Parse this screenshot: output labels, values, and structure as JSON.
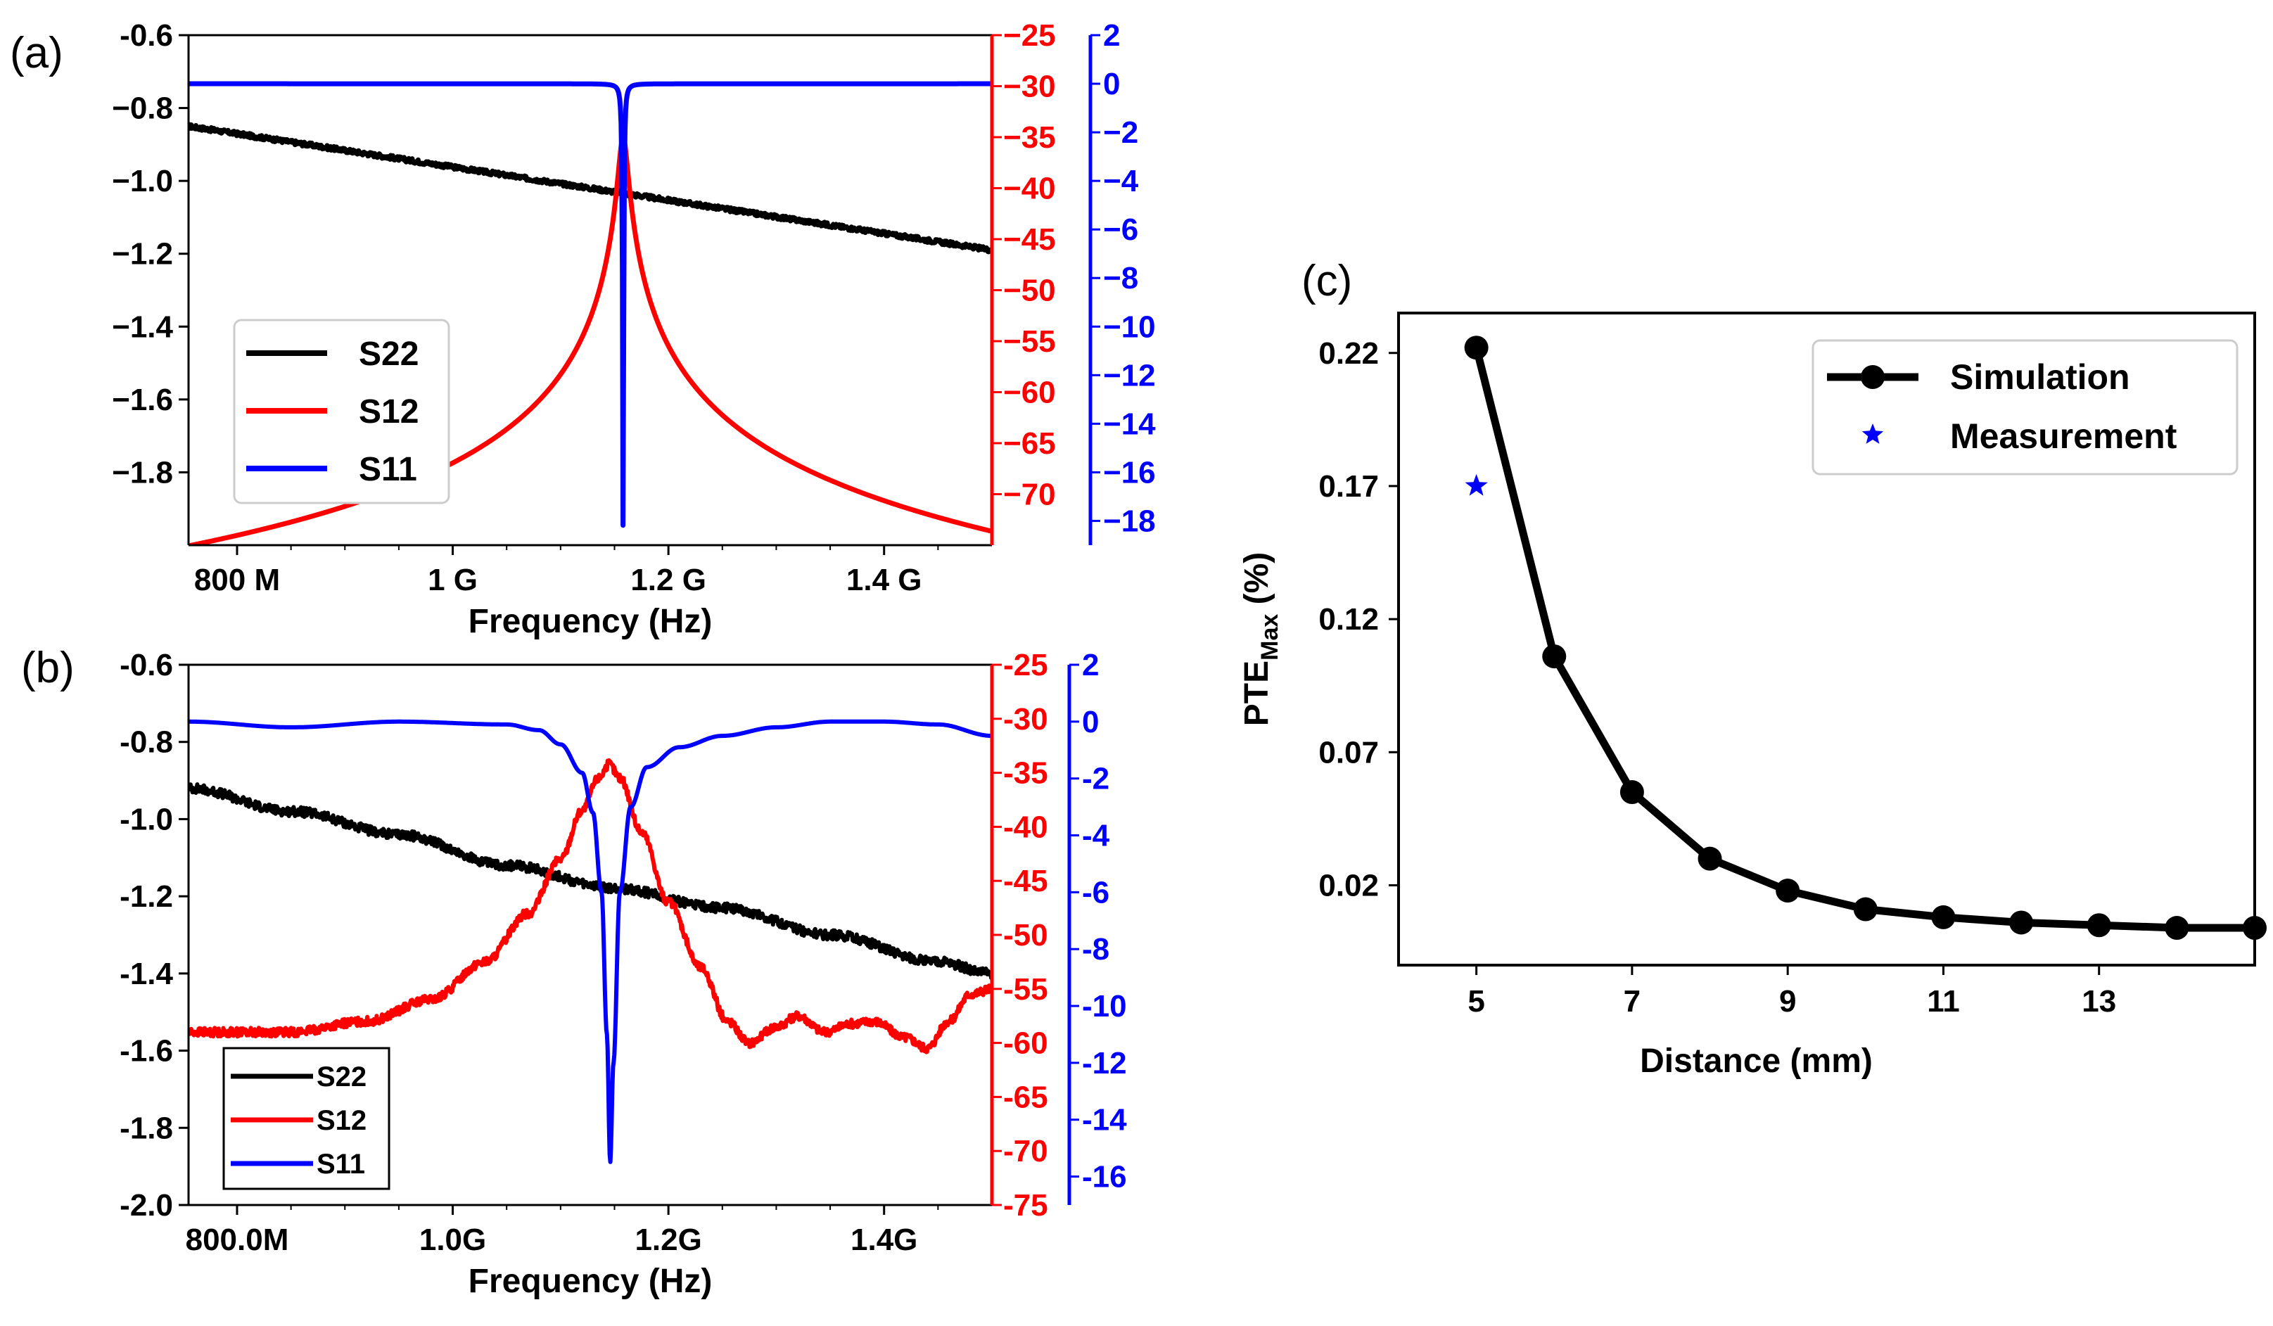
{
  "chart_data": [
    {
      "type": "line",
      "panel_label": "(a)",
      "xlabel": "Frequency (Hz)",
      "x_ticks": [
        {
          "value": 0.8,
          "label": "800 M"
        },
        {
          "value": 1.0,
          "label": "1 G"
        },
        {
          "value": 1.2,
          "label": "1.2 G"
        },
        {
          "value": 1.4,
          "label": "1.4 G"
        }
      ],
      "xlim": [
        0.755,
        1.5
      ],
      "y_left": {
        "ylim": [
          -2.0,
          -0.6
        ],
        "ticks": [
          {
            "value": -0.6,
            "label": "-0.6"
          },
          {
            "value": -0.8,
            "label": "−0.8"
          },
          {
            "value": -1.0,
            "label": "−1.0"
          },
          {
            "value": -1.2,
            "label": "−1.2"
          },
          {
            "value": -1.4,
            "label": "−1.4"
          },
          {
            "value": -1.6,
            "label": "−1.6"
          },
          {
            "value": -1.8,
            "label": "−1.8"
          }
        ]
      },
      "y_right1": {
        "color": "#ff0000",
        "ylim": [
          -75,
          -25
        ],
        "ticks": [
          {
            "value": -25,
            "label": "−25"
          },
          {
            "value": -30,
            "label": "−30"
          },
          {
            "value": -35,
            "label": "−35"
          },
          {
            "value": -40,
            "label": "−40"
          },
          {
            "value": -45,
            "label": "−45"
          },
          {
            "value": -50,
            "label": "−50"
          },
          {
            "value": -55,
            "label": "−55"
          },
          {
            "value": -60,
            "label": "−60"
          },
          {
            "value": -65,
            "label": "−65"
          },
          {
            "value": -70,
            "label": "−70"
          }
        ]
      },
      "y_right2": {
        "color": "#0000ff",
        "ylim": [
          -19,
          2
        ],
        "ticks": [
          {
            "value": 2,
            "label": "2"
          },
          {
            "value": 0,
            "label": "0"
          },
          {
            "value": -2,
            "label": "−2"
          },
          {
            "value": -4,
            "label": "−4"
          },
          {
            "value": -6,
            "label": "−6"
          },
          {
            "value": -8,
            "label": "−8"
          },
          {
            "value": -10,
            "label": "−10"
          },
          {
            "value": -12,
            "label": "−12"
          },
          {
            "value": -14,
            "label": "−14"
          },
          {
            "value": -16,
            "label": "−16"
          },
          {
            "value": -18,
            "label": "−18"
          }
        ]
      },
      "legend_position": "lower-left",
      "series": [
        {
          "name": "S22",
          "color": "#000000",
          "axis": "left",
          "curve": "linear_noisy",
          "x_start": 0.755,
          "x_end": 1.5,
          "y_start": -0.85,
          "y_end": -1.19,
          "noise": 0.006
        },
        {
          "name": "S12",
          "color": "#ff0000",
          "axis": "right1",
          "curve": "resonance",
          "center": 1.158,
          "peak": -35,
          "width": 0.004,
          "floor": -72
        },
        {
          "name": "S11",
          "color": "#0000ff",
          "axis": "right2",
          "curve": "notch",
          "center": 1.158,
          "depth": -18.5,
          "width": 0.0006,
          "baseline": 0
        }
      ]
    },
    {
      "type": "line",
      "panel_label": "(b)",
      "xlabel": "Frequency (Hz)",
      "x_ticks": [
        {
          "value": 0.8,
          "label": "800.0M"
        },
        {
          "value": 1.0,
          "label": "1.0G"
        },
        {
          "value": 1.2,
          "label": "1.2G"
        },
        {
          "value": 1.4,
          "label": "1.4G"
        }
      ],
      "xlim": [
        0.755,
        1.5
      ],
      "y_left": {
        "ylim": [
          -2.0,
          -0.6
        ],
        "ticks": [
          {
            "value": -0.6,
            "label": "-0.6"
          },
          {
            "value": -0.8,
            "label": "-0.8"
          },
          {
            "value": -1.0,
            "label": "-1.0"
          },
          {
            "value": -1.2,
            "label": "-1.2"
          },
          {
            "value": -1.4,
            "label": "-1.4"
          },
          {
            "value": -1.6,
            "label": "-1.6"
          },
          {
            "value": -1.8,
            "label": "-1.8"
          },
          {
            "value": -2.0,
            "label": "-2.0"
          }
        ]
      },
      "y_right1": {
        "color": "#ff0000",
        "ylim": [
          -75,
          -25
        ],
        "ticks": [
          {
            "value": -25,
            "label": "-25"
          },
          {
            "value": -30,
            "label": "-30"
          },
          {
            "value": -35,
            "label": "-35"
          },
          {
            "value": -40,
            "label": "-40"
          },
          {
            "value": -45,
            "label": "-45"
          },
          {
            "value": -50,
            "label": "-50"
          },
          {
            "value": -55,
            "label": "-55"
          },
          {
            "value": -60,
            "label": "-60"
          },
          {
            "value": -65,
            "label": "-65"
          },
          {
            "value": -70,
            "label": "-70"
          },
          {
            "value": -75,
            "label": "-75"
          }
        ]
      },
      "y_right2": {
        "color": "#0000ff",
        "ylim": [
          -17,
          2
        ],
        "ticks": [
          {
            "value": 2,
            "label": "2"
          },
          {
            "value": 0,
            "label": "0"
          },
          {
            "value": -2,
            "label": "-2"
          },
          {
            "value": -4,
            "label": "-4"
          },
          {
            "value": -6,
            "label": "-6"
          },
          {
            "value": -8,
            "label": "-8"
          },
          {
            "value": -10,
            "label": "-10"
          },
          {
            "value": -12,
            "label": "-12"
          },
          {
            "value": -14,
            "label": "-14"
          },
          {
            "value": -16,
            "label": "-16"
          }
        ]
      },
      "legend_position": "lower-left",
      "series": [
        {
          "name": "S22",
          "color": "#000000",
          "axis": "left",
          "points": [
            [
              0.755,
              -0.92
            ],
            [
              0.85,
              -0.98
            ],
            [
              0.95,
              -1.04
            ],
            [
              1.05,
              -1.12
            ],
            [
              1.15,
              -1.18
            ],
            [
              1.25,
              -1.23
            ],
            [
              1.35,
              -1.3
            ],
            [
              1.45,
              -1.37
            ],
            [
              1.5,
              -1.4
            ]
          ],
          "noise": 0.012
        },
        {
          "name": "S12",
          "color": "#ff0000",
          "axis": "right1",
          "points": [
            [
              0.755,
              -59
            ],
            [
              0.85,
              -59
            ],
            [
              0.92,
              -58
            ],
            [
              0.98,
              -56
            ],
            [
              1.03,
              -52.5
            ],
            [
              1.07,
              -48
            ],
            [
              1.1,
              -43
            ],
            [
              1.12,
              -38.5
            ],
            [
              1.135,
              -35.5
            ],
            [
              1.145,
              -34.2
            ],
            [
              1.155,
              -35.5
            ],
            [
              1.175,
              -40.5
            ],
            [
              1.2,
              -47
            ],
            [
              1.23,
              -53
            ],
            [
              1.255,
              -58
            ],
            [
              1.275,
              -60
            ],
            [
              1.3,
              -58.5
            ],
            [
              1.32,
              -57.5
            ],
            [
              1.345,
              -59
            ],
            [
              1.37,
              -58.2
            ],
            [
              1.39,
              -58
            ],
            [
              1.42,
              -59.5
            ],
            [
              1.44,
              -60.5
            ],
            [
              1.46,
              -58
            ],
            [
              1.48,
              -55.5
            ],
            [
              1.5,
              -55
            ]
          ],
          "noise": 0.4
        },
        {
          "name": "S11",
          "color": "#0000ff",
          "axis": "right2",
          "points": [
            [
              0.755,
              0.0
            ],
            [
              0.85,
              -0.2
            ],
            [
              0.95,
              0.0
            ],
            [
              1.05,
              -0.1
            ],
            [
              1.08,
              -0.3
            ],
            [
              1.1,
              -0.8
            ],
            [
              1.12,
              -1.8
            ],
            [
              1.13,
              -3.2
            ],
            [
              1.138,
              -6
            ],
            [
              1.143,
              -11
            ],
            [
              1.146,
              -15.5
            ],
            [
              1.149,
              -12
            ],
            [
              1.155,
              -6
            ],
            [
              1.165,
              -3
            ],
            [
              1.18,
              -1.6
            ],
            [
              1.21,
              -0.9
            ],
            [
              1.25,
              -0.5
            ],
            [
              1.3,
              -0.2
            ],
            [
              1.35,
              0.0
            ],
            [
              1.4,
              0.0
            ],
            [
              1.45,
              -0.1
            ],
            [
              1.5,
              -0.5
            ]
          ]
        }
      ]
    },
    {
      "type": "line",
      "panel_label": "(c)",
      "xlabel": "Distance (mm)",
      "ylabel_main": "PTE",
      "ylabel_sub": "Max",
      "ylabel_unit": " (%)",
      "xlim": [
        4,
        15
      ],
      "ylim": [
        -0.01,
        0.235
      ],
      "x_ticks": [
        {
          "value": 5,
          "label": "5"
        },
        {
          "value": 7,
          "label": "7"
        },
        {
          "value": 9,
          "label": "9"
        },
        {
          "value": 11,
          "label": "11"
        },
        {
          "value": 13,
          "label": "13"
        }
      ],
      "y_ticks": [
        {
          "value": 0.02,
          "label": "0.02"
        },
        {
          "value": 0.07,
          "label": "0.07"
        },
        {
          "value": 0.12,
          "label": "0.12"
        },
        {
          "value": 0.17,
          "label": "0.17"
        },
        {
          "value": 0.22,
          "label": "0.22"
        }
      ],
      "legend_position": "top-right",
      "series": [
        {
          "name": "Simulation",
          "color": "#000000",
          "x": [
            5,
            6,
            7,
            8,
            9,
            10,
            11,
            12,
            13,
            14,
            15
          ],
          "y": [
            0.222,
            0.106,
            0.055,
            0.03,
            0.018,
            0.011,
            0.008,
            0.006,
            0.005,
            0.004,
            0.004
          ]
        },
        {
          "name": "Measurement",
          "color": "#0000ff",
          "x": [
            5
          ],
          "y": [
            0.17
          ]
        }
      ]
    }
  ]
}
